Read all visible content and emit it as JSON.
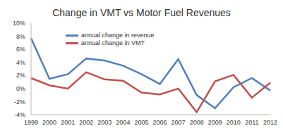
{
  "chart_data": {
    "type": "line",
    "title": "Change in VMT vs Motor Fuel Revenues",
    "categories": [
      "1999",
      "2000",
      "2001",
      "2002",
      "2003",
      "2004",
      "2005",
      "2006",
      "2007",
      "2008",
      "2009",
      "2010",
      "2011",
      "2012"
    ],
    "series": [
      {
        "name": "annual change in revenue",
        "color": "#4f81bd",
        "values": [
          7.7,
          1.5,
          2.2,
          4.6,
          4.3,
          3.5,
          2.2,
          0.7,
          4.5,
          -1.0,
          -3.0,
          0.2,
          1.6,
          -0.3
        ]
      },
      {
        "name": "annual change in VMT",
        "color": "#c0504d",
        "values": [
          1.6,
          0.5,
          0.0,
          2.5,
          1.4,
          1.2,
          -0.6,
          -0.9,
          0.0,
          -3.6,
          1.1,
          2.1,
          -1.4,
          0.9
        ]
      }
    ],
    "ylim": [
      -4,
      10
    ],
    "yticks": [
      {
        "value": -4,
        "label": "-4%"
      },
      {
        "value": -2,
        "label": "-2%"
      },
      {
        "value": 0,
        "label": "0%"
      },
      {
        "value": 2,
        "label": "2%"
      },
      {
        "value": 4,
        "label": "4%"
      },
      {
        "value": 6,
        "label": "6%"
      },
      {
        "value": 8,
        "label": "8%"
      },
      {
        "value": 10,
        "label": "10%"
      }
    ],
    "grid": false,
    "legend": "upper left"
  }
}
